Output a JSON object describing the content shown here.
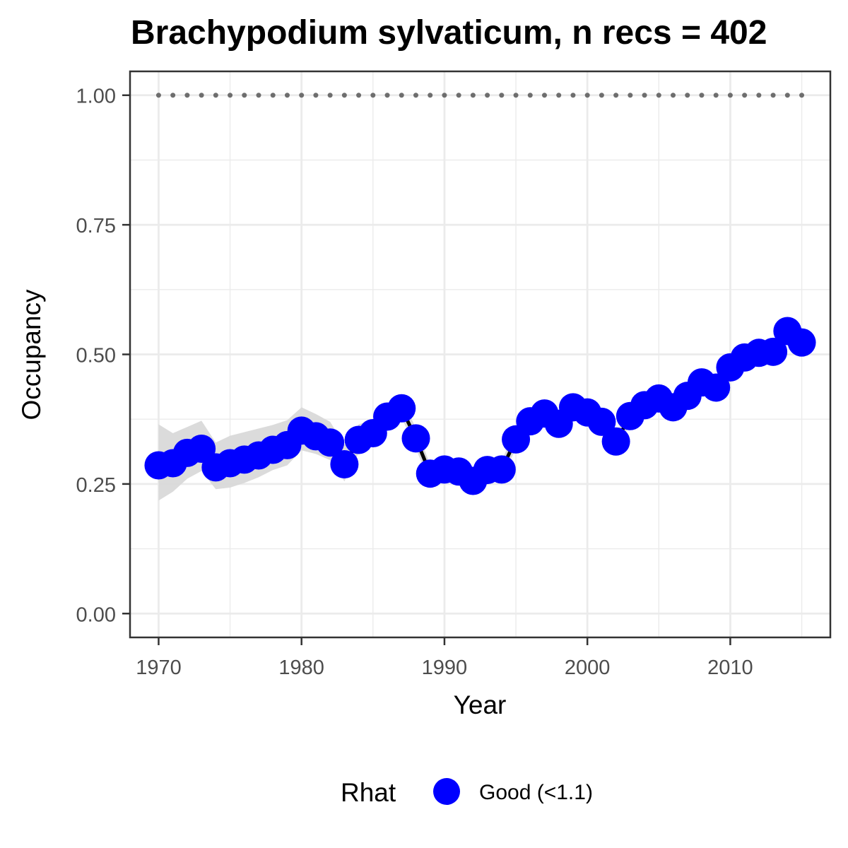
{
  "chart_data": {
    "type": "line",
    "title": "Brachypodium sylvaticum, n recs = 402",
    "xlabel": "Year",
    "ylabel": "Occupancy",
    "xlim": [
      1968,
      2017
    ],
    "ylim": [
      -0.046,
      1.046
    ],
    "x_ticks": [
      1970,
      1980,
      1990,
      2000,
      2010
    ],
    "x_tick_labels": [
      "1970",
      "1980",
      "1990",
      "2000",
      "2010"
    ],
    "y_ticks": [
      0.0,
      0.25,
      0.5,
      0.75,
      1.0
    ],
    "y_tick_labels": [
      "0.00",
      "0.25",
      "0.50",
      "0.75",
      "1.00"
    ],
    "grid": true,
    "legend": {
      "title": "Rhat",
      "position": "bottom",
      "entries": [
        {
          "label": "Good (<1.1)",
          "color": "#0000ff"
        }
      ]
    },
    "colors": {
      "points": "#0000ff",
      "line": "#000000",
      "ribbon": "#d9d9d9",
      "reference": "#6e6e6e",
      "grid": "#ebebeb",
      "panel_border": "#333333"
    },
    "x": [
      1970,
      1971,
      1972,
      1973,
      1974,
      1975,
      1976,
      1977,
      1978,
      1979,
      1980,
      1981,
      1982,
      1983,
      1984,
      1985,
      1986,
      1987,
      1988,
      1989,
      1990,
      1991,
      1992,
      1993,
      1994,
      1995,
      1996,
      1997,
      1998,
      1999,
      2000,
      2001,
      2002,
      2003,
      2004,
      2005,
      2006,
      2007,
      2008,
      2009,
      2010,
      2011,
      2012,
      2013,
      2014,
      2015
    ],
    "series": [
      {
        "values": [
          0.286,
          0.29,
          0.31,
          0.318,
          0.282,
          0.29,
          0.297,
          0.305,
          0.316,
          0.325,
          0.353,
          0.342,
          0.33,
          0.288,
          0.335,
          0.348,
          0.38,
          0.396,
          0.338,
          0.27,
          0.278,
          0.274,
          0.256,
          0.277,
          0.278,
          0.336,
          0.371,
          0.386,
          0.366,
          0.398,
          0.388,
          0.37,
          0.332,
          0.381,
          0.402,
          0.415,
          0.398,
          0.42,
          0.446,
          0.436,
          0.475,
          0.494,
          0.503,
          0.505,
          0.545,
          0.523
        ],
        "lower": [
          0.218,
          0.235,
          0.26,
          0.275,
          0.24,
          0.243,
          0.252,
          0.263,
          0.277,
          0.286,
          0.315,
          0.308,
          0.296,
          0.255,
          0.31,
          0.325,
          0.36,
          0.378,
          0.318,
          0.253,
          0.26,
          0.257,
          0.243,
          0.26,
          0.262,
          0.318,
          0.353,
          0.37,
          0.35,
          0.382,
          0.372,
          0.354,
          0.318,
          0.365,
          0.386,
          0.4,
          0.384,
          0.404,
          0.43,
          0.42,
          0.458,
          0.478,
          0.486,
          0.489,
          0.528,
          0.506
        ],
        "upper": [
          0.365,
          0.348,
          0.36,
          0.372,
          0.33,
          0.343,
          0.35,
          0.357,
          0.364,
          0.373,
          0.398,
          0.385,
          0.37,
          0.326,
          0.365,
          0.375,
          0.403,
          0.415,
          0.358,
          0.288,
          0.297,
          0.292,
          0.27,
          0.294,
          0.295,
          0.355,
          0.39,
          0.403,
          0.383,
          0.415,
          0.405,
          0.387,
          0.347,
          0.397,
          0.418,
          0.431,
          0.413,
          0.437,
          0.462,
          0.452,
          0.492,
          0.511,
          0.52,
          0.522,
          0.562,
          0.54
        ]
      }
    ],
    "reference_line": {
      "y": 1.0
    }
  }
}
